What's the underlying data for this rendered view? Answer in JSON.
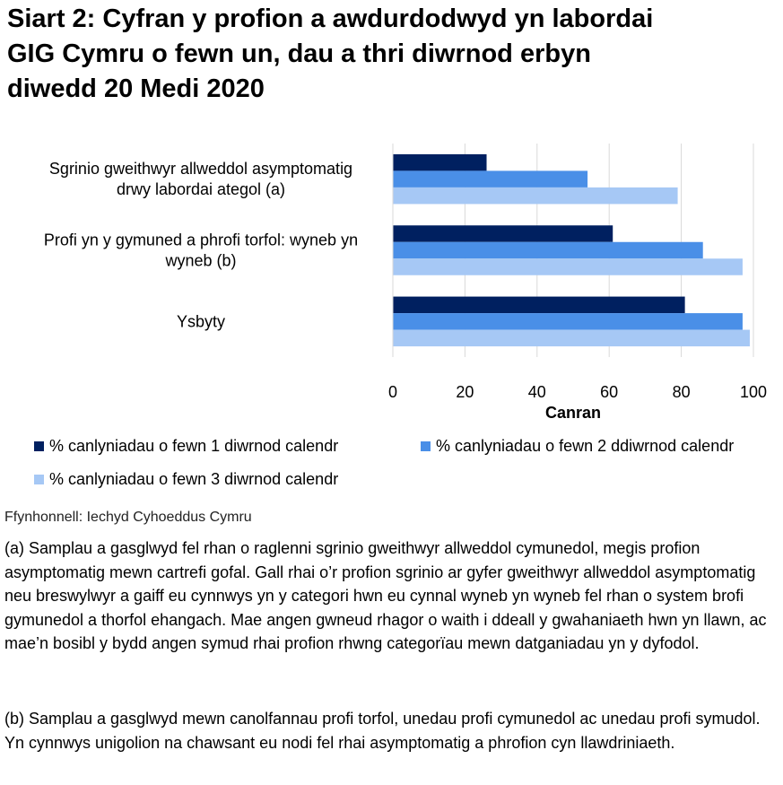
{
  "title_lines": [
    "Siart 2: Cyfran y profion a awdurdodwyd yn labordai",
    "GIG Cymru o fewn un, dau a thri diwrnod erbyn",
    "diwedd 20 Medi 2020"
  ],
  "chart_data": {
    "type": "bar",
    "orientation": "horizontal",
    "title": "Siart 2: Cyfran y profion a awdurdodwyd yn labordai GIG Cymru o fewn un, dau a thri diwrnod erbyn diwedd 20 Medi 2020",
    "categories": [
      [
        "Sgrinio gweithwyr allweddol asymptomatig",
        "drwy labordai ategol (a)"
      ],
      [
        "Profi yn y gymuned a phrofi torfol: wyneb yn",
        "wyneb (b)"
      ],
      [
        "Ysbyty"
      ]
    ],
    "series": [
      {
        "name": "% canlyniadau o fewn 1 diwrnod calendr",
        "color": "#002060",
        "values": [
          26,
          61,
          81
        ]
      },
      {
        "name": "% canlyniadau o fewn 2 ddiwrnod calendr",
        "color": "#4a8fe7",
        "values": [
          54,
          86,
          97
        ]
      },
      {
        "name": "% canlyniadau o fewn 3 diwrnod calendr",
        "color": "#a6c8f5",
        "values": [
          79,
          97,
          99
        ]
      }
    ],
    "xlabel": "Canran",
    "xlim": [
      0,
      100
    ],
    "xticks": [
      0,
      20,
      40,
      60,
      80,
      100
    ],
    "grid": true,
    "legend_position": "bottom"
  },
  "source": "Ffynhonnell: Iechyd Cyhoeddus Cymru",
  "notes": [
    "(a) Samplau a gasglwyd fel rhan o raglenni sgrinio gweithwyr allweddol cymunedol, megis profion asymptomatig mewn cartrefi gofal. Gall rhai o’r profion sgrinio ar gyfer gweithwyr allweddol asymptomatig neu breswylwyr a gaiff eu cynnwys yn y categori hwn eu cynnal wyneb yn wyneb fel rhan o system brofi gymunedol a thorfol ehangach. Mae angen gwneud rhagor o waith i ddeall y gwahaniaeth hwn yn llawn, ac mae’n bosibl y bydd angen symud rhai profion rhwng categorïau mewn datganiadau yn y dyfodol.",
    "(b) Samplau a gasglwyd mewn canolfannau profi torfol, unedau profi cymunedol ac unedau profi symudol. Yn cynnwys unigolion na chawsant eu nodi fel rhai asymptomatig a phrofion cyn llawdriniaeth."
  ]
}
